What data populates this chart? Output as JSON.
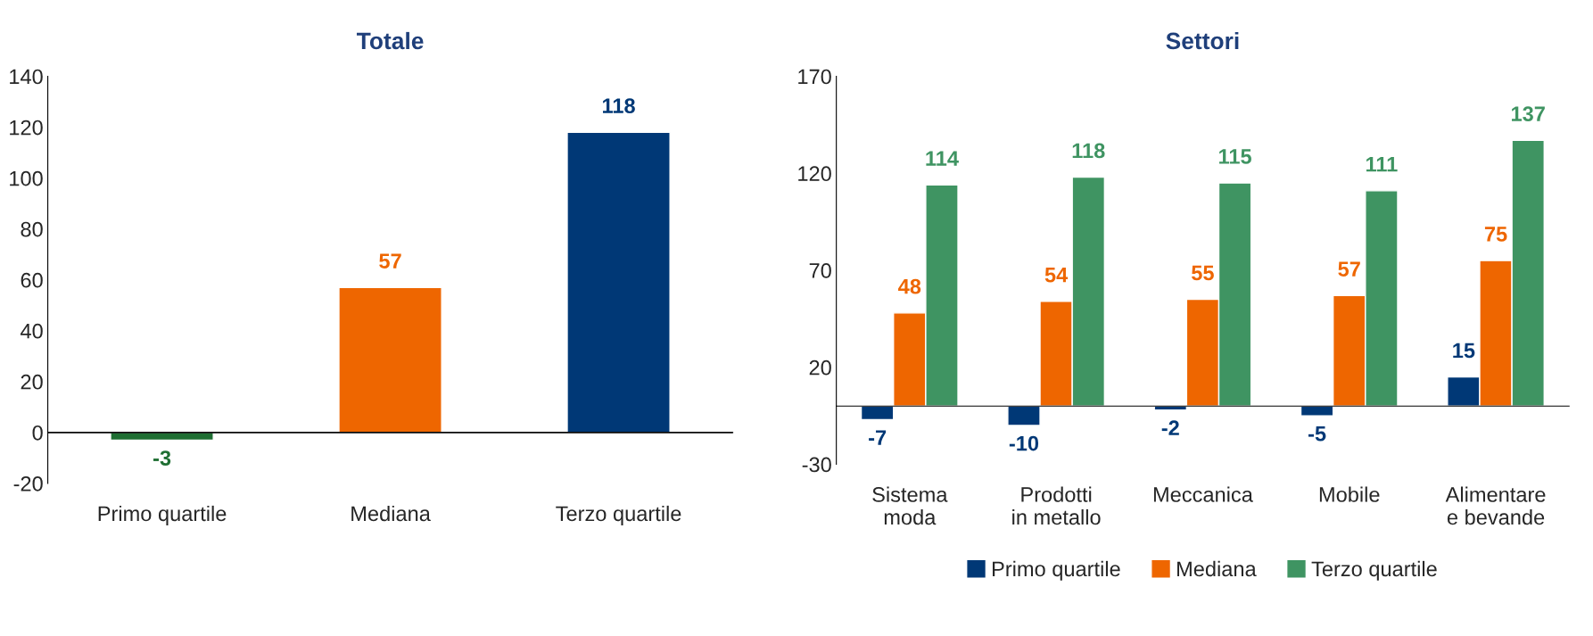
{
  "chart_data": [
    {
      "type": "bar",
      "title": "Totale",
      "categories": [
        "Primo quartile",
        "Mediana",
        "Terzo quartile"
      ],
      "values": [
        -3,
        57,
        118
      ],
      "colors": [
        "#1e6e32",
        "#ee6600",
        "#003876"
      ],
      "ylim": [
        -20,
        140
      ],
      "yticks": [
        -20,
        0,
        20,
        40,
        60,
        80,
        100,
        120,
        140
      ],
      "data_labels": true,
      "grid": false,
      "legend": false,
      "ref_lines": [
        {
          "axis": "y",
          "value": 0,
          "color": "#000000"
        }
      ]
    },
    {
      "type": "bar",
      "title": "Settori",
      "categories": [
        "Sistema\nmoda",
        "Prodotti\nin metallo",
        "Meccanica",
        "Mobile",
        "Alimentare\ne bevande"
      ],
      "series": [
        {
          "name": "Primo quartile",
          "color": "#003876",
          "values": [
            -7,
            -10,
            -2,
            -5,
            15
          ]
        },
        {
          "name": "Mediana",
          "color": "#ee6600",
          "values": [
            48,
            54,
            55,
            57,
            75
          ]
        },
        {
          "name": "Terzo quartile",
          "color": "#3f9462",
          "values": [
            114,
            118,
            115,
            111,
            137
          ]
        }
      ],
      "ylim": [
        -30,
        170
      ],
      "yticks": [
        -30,
        20,
        70,
        120,
        170
      ],
      "data_labels": true,
      "grid": false,
      "legend": "bottom"
    }
  ]
}
